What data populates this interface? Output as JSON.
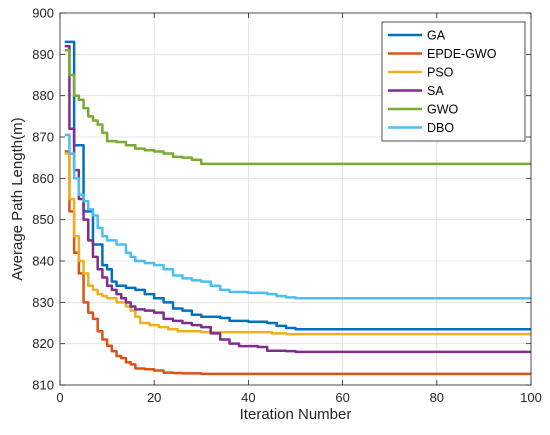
{
  "chart_data": {
    "type": "line",
    "xlabel": "Iteration Number",
    "ylabel": "Average Path Length(m)",
    "xlim": [
      0,
      100
    ],
    "ylim": [
      810,
      900
    ],
    "xticks": [
      0,
      20,
      40,
      60,
      80,
      100
    ],
    "yticks": [
      810,
      820,
      830,
      840,
      850,
      860,
      870,
      880,
      890,
      900
    ],
    "grid": true,
    "legend_position": "top-right",
    "series": [
      {
        "name": "GA",
        "color": "#0072BD",
        "points": [
          [
            1,
            893
          ],
          [
            3,
            868
          ],
          [
            5,
            852
          ],
          [
            7,
            844
          ],
          [
            9,
            839
          ],
          [
            10,
            838
          ],
          [
            11,
            835
          ],
          [
            12,
            834
          ],
          [
            14,
            833.5
          ],
          [
            16,
            833
          ],
          [
            18,
            832
          ],
          [
            20,
            831
          ],
          [
            22,
            830
          ],
          [
            24,
            828.5
          ],
          [
            26,
            828
          ],
          [
            28,
            827
          ],
          [
            30,
            826.5
          ],
          [
            34,
            826.2
          ],
          [
            36,
            825.5
          ],
          [
            40,
            825.3
          ],
          [
            44,
            825
          ],
          [
            46,
            824.3
          ],
          [
            48,
            823.8
          ],
          [
            50,
            823.5
          ],
          [
            60,
            823.5
          ],
          [
            100,
            823.5
          ]
        ]
      },
      {
        "name": "EPDE-GWO",
        "color": "#D95319",
        "points": [
          [
            1,
            866.5
          ],
          [
            2,
            852
          ],
          [
            3,
            842
          ],
          [
            4,
            837
          ],
          [
            5,
            830
          ],
          [
            6,
            827.5
          ],
          [
            7,
            826
          ],
          [
            8,
            823
          ],
          [
            9,
            821
          ],
          [
            10,
            819.5
          ],
          [
            11,
            818.2
          ],
          [
            12,
            817
          ],
          [
            13,
            816.5
          ],
          [
            14,
            815.5
          ],
          [
            15,
            815
          ],
          [
            16,
            814
          ],
          [
            18,
            813.8
          ],
          [
            20,
            813.5
          ],
          [
            22,
            813
          ],
          [
            24,
            812.9
          ],
          [
            26,
            812.8
          ],
          [
            30,
            812.7
          ],
          [
            40,
            812.7
          ],
          [
            100,
            812.7
          ]
        ]
      },
      {
        "name": "PSO",
        "color": "#EDB120",
        "points": [
          [
            1,
            866
          ],
          [
            2,
            855
          ],
          [
            3,
            846
          ],
          [
            4,
            840
          ],
          [
            5,
            837
          ],
          [
            6,
            834
          ],
          [
            7,
            833
          ],
          [
            8,
            832
          ],
          [
            9,
            831.5
          ],
          [
            10,
            831
          ],
          [
            12,
            830
          ],
          [
            14,
            829
          ],
          [
            15,
            828
          ],
          [
            16,
            826.5
          ],
          [
            17,
            825
          ],
          [
            19,
            824.5
          ],
          [
            21,
            824
          ],
          [
            23,
            823.5
          ],
          [
            25,
            823
          ],
          [
            30,
            822.8
          ],
          [
            40,
            822.8
          ],
          [
            45,
            822.5
          ],
          [
            48,
            822.3
          ],
          [
            50,
            822.3
          ],
          [
            100,
            822.3
          ]
        ]
      },
      {
        "name": "SA",
        "color": "#7E2F8E",
        "points": [
          [
            1,
            892
          ],
          [
            2,
            872
          ],
          [
            3,
            862
          ],
          [
            4,
            855
          ],
          [
            5,
            850
          ],
          [
            6,
            845
          ],
          [
            7,
            841
          ],
          [
            8,
            838
          ],
          [
            9,
            836
          ],
          [
            10,
            834
          ],
          [
            11,
            833
          ],
          [
            12,
            832
          ],
          [
            13,
            831
          ],
          [
            14,
            830
          ],
          [
            15,
            829
          ],
          [
            16,
            828.3
          ],
          [
            18,
            828
          ],
          [
            20,
            827.5
          ],
          [
            22,
            826
          ],
          [
            24,
            825.5
          ],
          [
            26,
            825
          ],
          [
            28,
            824.5
          ],
          [
            30,
            824
          ],
          [
            32,
            822.5
          ],
          [
            34,
            821
          ],
          [
            36,
            820
          ],
          [
            38,
            819.4
          ],
          [
            42,
            819.2
          ],
          [
            44,
            818.3
          ],
          [
            48,
            818.2
          ],
          [
            50,
            818
          ],
          [
            100,
            818
          ]
        ]
      },
      {
        "name": "GWO",
        "color": "#77AC30",
        "points": [
          [
            1,
            891
          ],
          [
            2,
            885
          ],
          [
            3,
            880
          ],
          [
            4,
            879
          ],
          [
            5,
            877
          ],
          [
            6,
            875
          ],
          [
            7,
            874
          ],
          [
            8,
            873
          ],
          [
            9,
            871
          ],
          [
            10,
            869
          ],
          [
            12,
            868.8
          ],
          [
            14,
            868
          ],
          [
            16,
            867.2
          ],
          [
            18,
            866.8
          ],
          [
            20,
            866.5
          ],
          [
            22,
            866
          ],
          [
            24,
            865.2
          ],
          [
            26,
            865
          ],
          [
            28,
            864.5
          ],
          [
            30,
            863.5
          ],
          [
            35,
            863.5
          ],
          [
            100,
            863.5
          ]
        ]
      },
      {
        "name": "DBO",
        "color": "#4DBEEE",
        "points": [
          [
            1,
            870.5
          ],
          [
            2,
            866
          ],
          [
            3,
            860
          ],
          [
            4,
            856
          ],
          [
            5,
            854.5
          ],
          [
            6,
            852.5
          ],
          [
            7,
            851
          ],
          [
            8,
            848
          ],
          [
            9,
            846
          ],
          [
            10,
            845
          ],
          [
            12,
            844
          ],
          [
            14,
            842
          ],
          [
            15,
            841
          ],
          [
            16,
            840
          ],
          [
            18,
            839.5
          ],
          [
            20,
            839
          ],
          [
            22,
            838
          ],
          [
            24,
            836.5
          ],
          [
            26,
            835.8
          ],
          [
            28,
            835.3
          ],
          [
            30,
            835
          ],
          [
            32,
            834
          ],
          [
            34,
            833
          ],
          [
            36,
            832.5
          ],
          [
            40,
            832.3
          ],
          [
            44,
            832
          ],
          [
            46,
            831.5
          ],
          [
            48,
            831.2
          ],
          [
            50,
            831
          ],
          [
            100,
            831
          ]
        ]
      }
    ]
  }
}
